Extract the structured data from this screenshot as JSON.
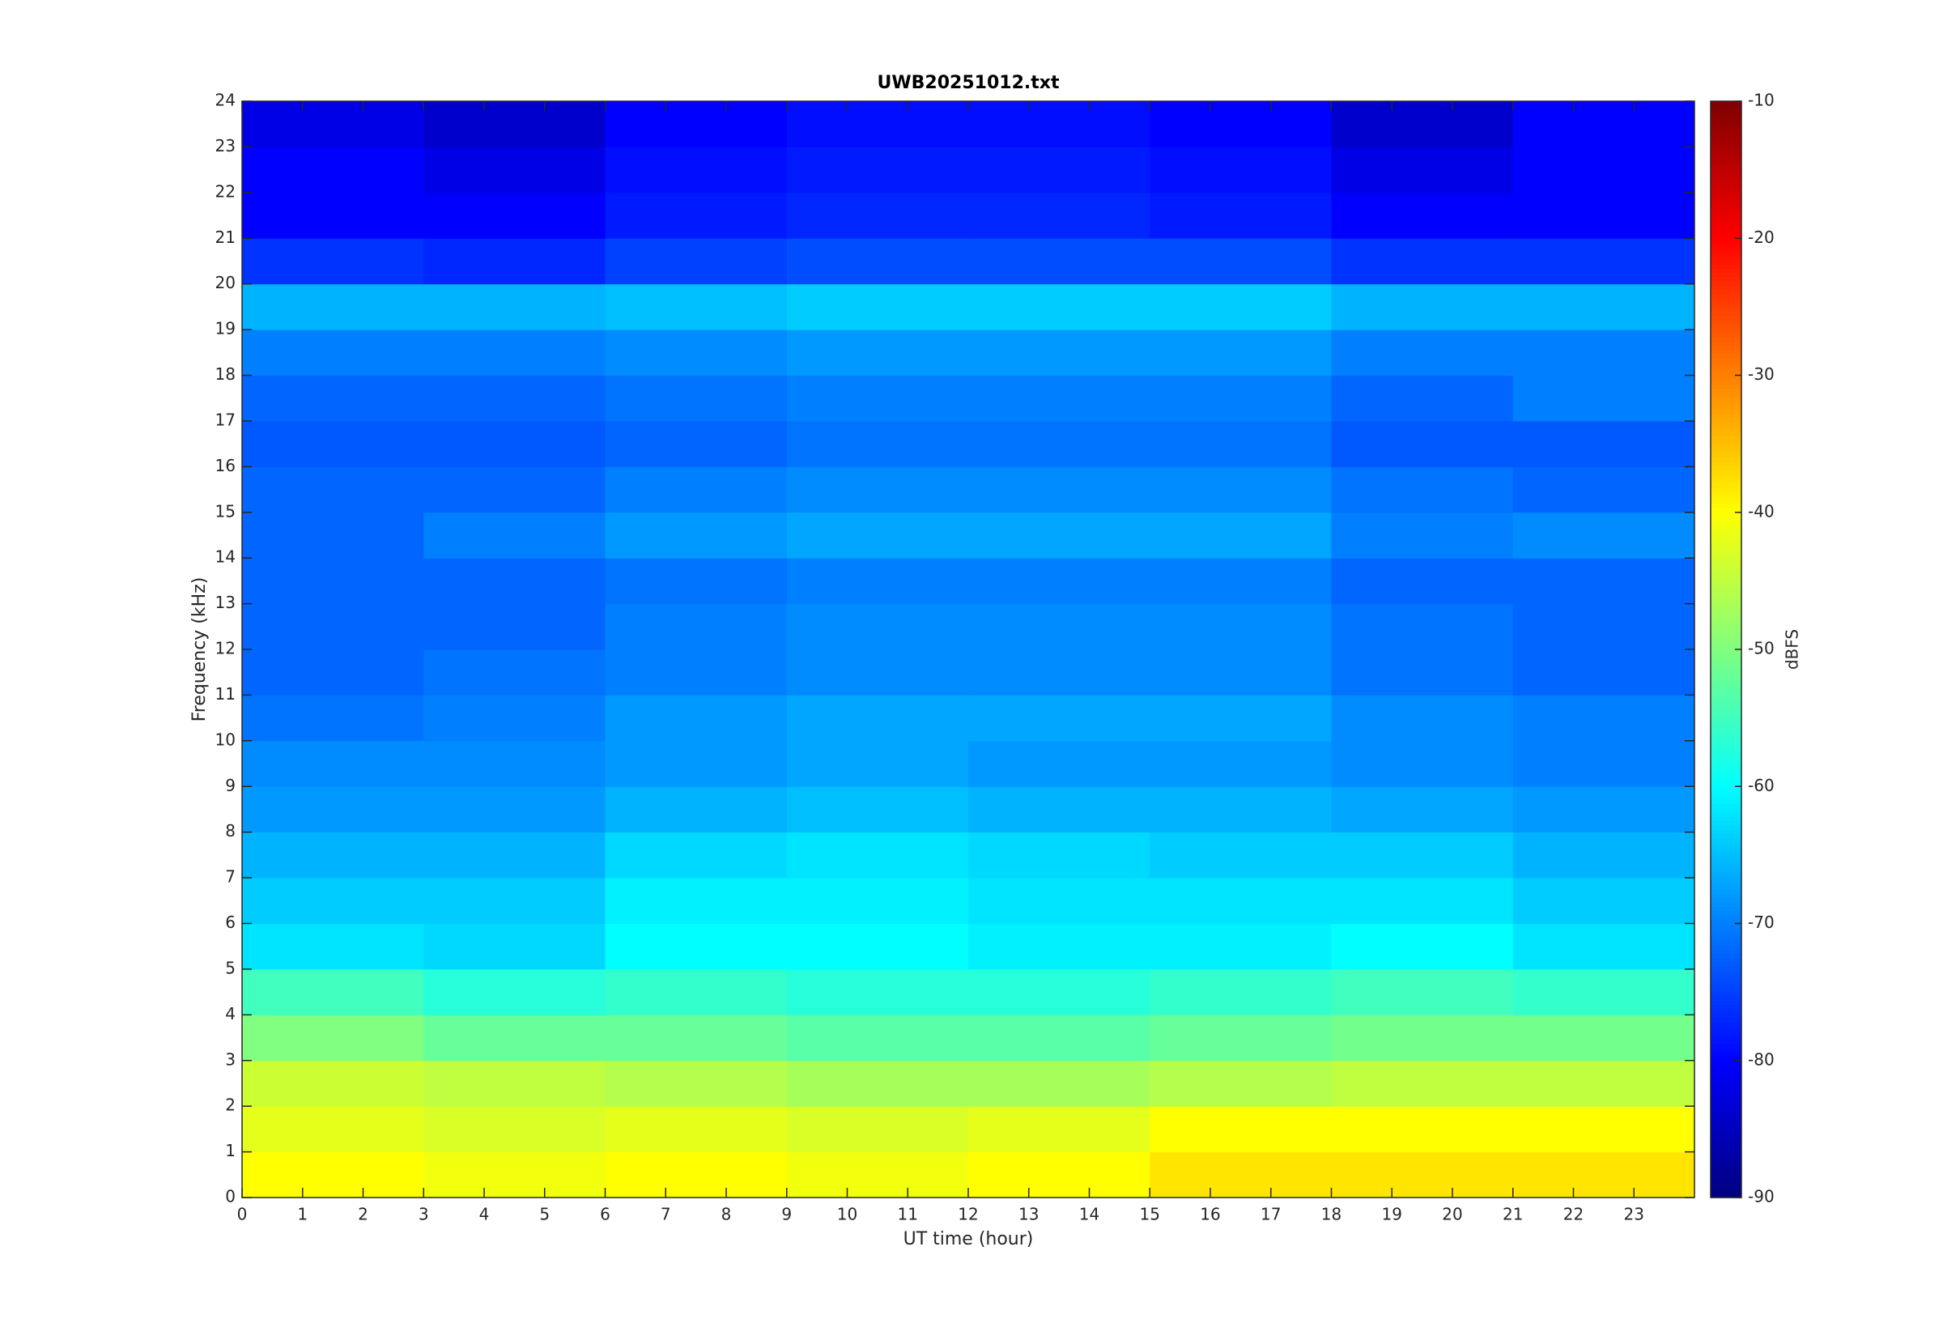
{
  "chart_data": {
    "type": "heatmap",
    "title": "UWB20251012.txt",
    "xlabel": "UT time (hour)",
    "ylabel": "Frequency (kHz)",
    "xlim": [
      0,
      24
    ],
    "xticks": [
      0,
      1,
      2,
      3,
      4,
      5,
      6,
      7,
      8,
      9,
      10,
      11,
      12,
      13,
      14,
      15,
      16,
      17,
      18,
      19,
      20,
      21,
      22,
      23
    ],
    "ylim": [
      0,
      24
    ],
    "yticks": [
      0,
      1,
      2,
      3,
      4,
      5,
      6,
      7,
      8,
      9,
      10,
      11,
      12,
      13,
      14,
      15,
      16,
      17,
      18,
      19,
      20,
      21,
      22,
      23,
      24
    ],
    "xbins": [
      0,
      3,
      6,
      9,
      12,
      15,
      18,
      21,
      24
    ],
    "ybins": [
      0,
      1,
      2,
      3,
      4,
      5,
      6,
      7,
      8,
      9,
      10,
      11,
      12,
      13,
      14,
      15,
      16,
      17,
      18,
      19,
      20,
      21,
      22,
      23,
      24
    ],
    "z": [
      [
        -40,
        -41,
        -40,
        -41,
        -40,
        -38,
        -38,
        -38
      ],
      [
        -42,
        -43,
        -42,
        -43,
        -42,
        -40,
        -40,
        -40
      ],
      [
        -44,
        -45,
        -46,
        -47,
        -47,
        -46,
        -45,
        -45
      ],
      [
        -50,
        -52,
        -52,
        -53,
        -53,
        -52,
        -51,
        -51
      ],
      [
        -55,
        -57,
        -56,
        -57,
        -57,
        -56,
        -55,
        -56
      ],
      [
        -62,
        -63,
        -60,
        -60,
        -61,
        -61,
        -60,
        -62
      ],
      [
        -64,
        -64,
        -61,
        -61,
        -62,
        -62,
        -62,
        -64
      ],
      [
        -66,
        -66,
        -63,
        -62,
        -63,
        -64,
        -64,
        -66
      ],
      [
        -68,
        -68,
        -66,
        -65,
        -66,
        -66,
        -67,
        -68
      ],
      [
        -69,
        -69,
        -68,
        -67,
        -68,
        -68,
        -69,
        -70
      ],
      [
        -71,
        -70,
        -68,
        -67,
        -67,
        -67,
        -69,
        -70
      ],
      [
        -72,
        -71,
        -70,
        -69,
        -69,
        -69,
        -71,
        -72
      ],
      [
        -72,
        -72,
        -70,
        -69,
        -69,
        -69,
        -71,
        -72
      ],
      [
        -72,
        -72,
        -71,
        -70,
        -70,
        -70,
        -72,
        -72
      ],
      [
        -72,
        -70,
        -68,
        -67,
        -67,
        -67,
        -70,
        -69
      ],
      [
        -72,
        -72,
        -70,
        -69,
        -69,
        -69,
        -71,
        -72
      ],
      [
        -73,
        -73,
        -72,
        -71,
        -71,
        -71,
        -73,
        -73
      ],
      [
        -72,
        -72,
        -71,
        -70,
        -70,
        -70,
        -72,
        -70
      ],
      [
        -70,
        -70,
        -69,
        -68,
        -68,
        -68,
        -70,
        -70
      ],
      [
        -66,
        -66,
        -65,
        -64,
        -64,
        -64,
        -66,
        -66
      ],
      [
        -76,
        -77,
        -75,
        -74,
        -74,
        -74,
        -76,
        -76
      ],
      [
        -80,
        -80,
        -78,
        -77,
        -77,
        -78,
        -80,
        -80
      ],
      [
        -80,
        -82,
        -79,
        -78,
        -78,
        -79,
        -82,
        -80
      ],
      [
        -82,
        -84,
        -80,
        -79,
        -79,
        -80,
        -84,
        -80
      ]
    ],
    "colormap": "jet",
    "clim": [
      -90,
      -10
    ],
    "cticks": [
      -90,
      -80,
      -70,
      -60,
      -50,
      -40,
      -30,
      -20,
      -10
    ],
    "clabel": "dBFS"
  }
}
